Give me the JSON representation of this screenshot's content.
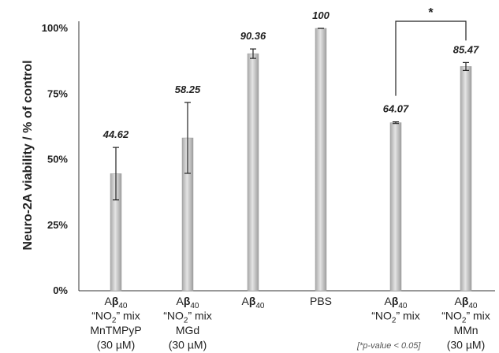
{
  "chart_data": {
    "type": "bar",
    "ylabel": "Neuro-2A viability / % of control",
    "ylim": [
      0,
      100
    ],
    "yticks": [
      "0%",
      "25%",
      "50%",
      "75%",
      "100%"
    ],
    "grid": false,
    "categories": [
      [
        "Aβ40",
        "“NO2” mix",
        "MnTMPyP",
        "(30 µM)"
      ],
      [
        "Aβ40",
        "“NO2” mix",
        "MGd",
        "(30 µM)"
      ],
      [
        "Aβ40"
      ],
      [
        "PBS"
      ],
      [
        "Aβ40",
        "“NO2” mix"
      ],
      [
        "Aβ40",
        "“NO2” mix",
        "MMn",
        "(30 µM)"
      ]
    ],
    "values": [
      44.62,
      58.25,
      90.36,
      100,
      64.07,
      85.47
    ],
    "value_labels": [
      "44.62",
      "58.25",
      "90.36",
      "100",
      "64.07",
      "85.47"
    ],
    "errors": [
      10,
      13.5,
      1.8,
      0,
      0.3,
      1.5
    ],
    "significance": {
      "between": [
        4,
        5
      ],
      "label": "*"
    },
    "note": "[*p-value < 0.05]",
    "bar_color": "#c4c4c4"
  }
}
